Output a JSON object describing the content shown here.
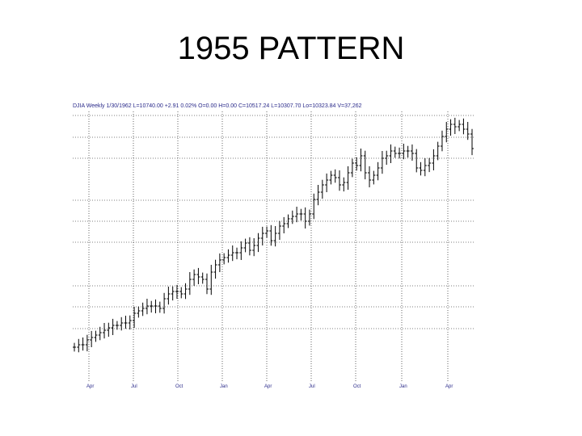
{
  "slide": {
    "title": "1955 PATTERN"
  },
  "chart_data": {
    "type": "bar",
    "style": "ohlc-price-bars",
    "header": "DJIA  Weekly 1/30/1962  L=10740.00  +2.91  0.02%  O=0.00  H=0.00  C=10517.24  L=10307.70  Lo=10323.84  V=37,262",
    "x_tick_labels": [
      "Apr",
      "Jul",
      "Oct",
      "Jan",
      "Apr",
      "Jul",
      "Oct",
      "Jan",
      "Apr"
    ],
    "grid": {
      "horizontal": "dotted",
      "vertical": "dotted"
    },
    "y_range_relative": [
      0,
      1
    ],
    "values": [
      0.05,
      0.06,
      0.06,
      0.08,
      0.09,
      0.1,
      0.11,
      0.12,
      0.13,
      0.14,
      0.14,
      0.15,
      0.15,
      0.16,
      0.19,
      0.2,
      0.21,
      0.22,
      0.22,
      0.22,
      0.21,
      0.25,
      0.27,
      0.28,
      0.28,
      0.27,
      0.29,
      0.33,
      0.35,
      0.34,
      0.33,
      0.29,
      0.36,
      0.39,
      0.41,
      0.42,
      0.43,
      0.44,
      0.44,
      0.46,
      0.48,
      0.45,
      0.47,
      0.5,
      0.52,
      0.53,
      0.49,
      0.52,
      0.55,
      0.56,
      0.58,
      0.59,
      0.6,
      0.6,
      0.57,
      0.6,
      0.66,
      0.69,
      0.72,
      0.74,
      0.76,
      0.75,
      0.72,
      0.73,
      0.77,
      0.81,
      0.8,
      0.84,
      0.77,
      0.74,
      0.76,
      0.79,
      0.83,
      0.84,
      0.86,
      0.85,
      0.85,
      0.86,
      0.86,
      0.85,
      0.79,
      0.78,
      0.8,
      0.81,
      0.84,
      0.88,
      0.92,
      0.95,
      0.97,
      0.96,
      0.97,
      0.95,
      0.93,
      0.87
    ]
  }
}
